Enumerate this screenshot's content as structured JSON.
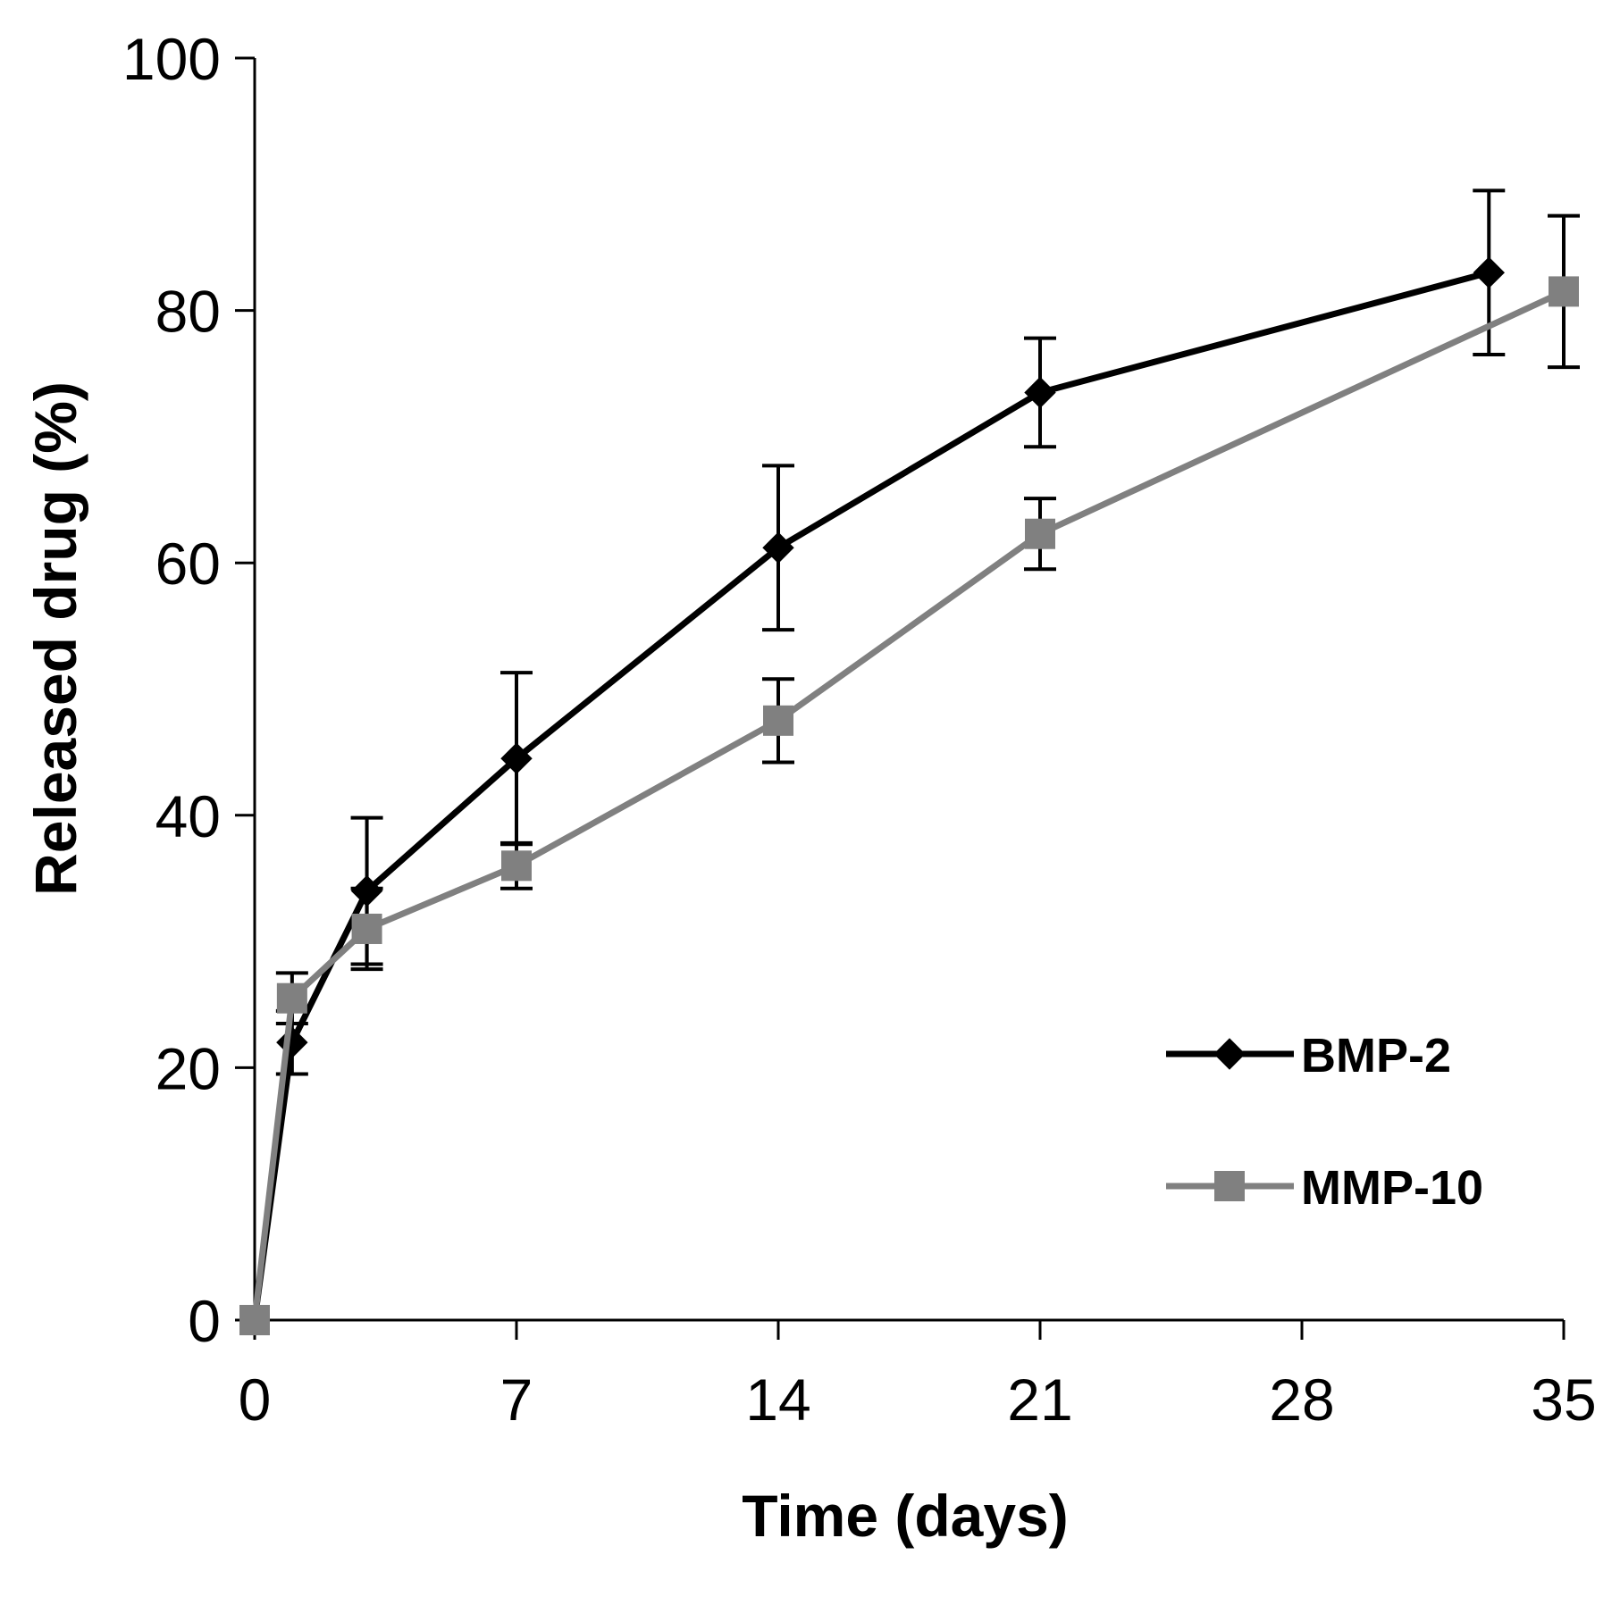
{
  "chart_data": {
    "type": "line",
    "title": "",
    "xlabel": "Time (days)",
    "ylabel": "Released drug (%)",
    "xlim": [
      0,
      35
    ],
    "ylim": [
      0,
      100
    ],
    "xticks": [
      0,
      7,
      14,
      21,
      28,
      35
    ],
    "yticks": [
      0,
      20,
      40,
      60,
      80,
      100
    ],
    "grid": false,
    "legend_position": "bottom-right",
    "series": [
      {
        "name": "BMP-2",
        "color": "#000000",
        "marker": "diamond",
        "x": [
          0,
          1,
          3,
          7,
          14,
          21,
          33
        ],
        "y": [
          0,
          22,
          34,
          44.5,
          61.2,
          73.5,
          83
        ],
        "error": [
          0,
          2.5,
          5.8,
          6.8,
          6.5,
          4.3,
          6.5
        ]
      },
      {
        "name": "MMP-10",
        "color": "#808080",
        "marker": "square",
        "x": [
          0,
          1,
          3,
          7,
          14,
          21,
          35
        ],
        "y": [
          0,
          25.5,
          31,
          36,
          47.5,
          62.3,
          81.5
        ],
        "error": [
          0,
          2.0,
          3.2,
          1.8,
          3.3,
          2.8,
          6.0
        ]
      }
    ]
  }
}
